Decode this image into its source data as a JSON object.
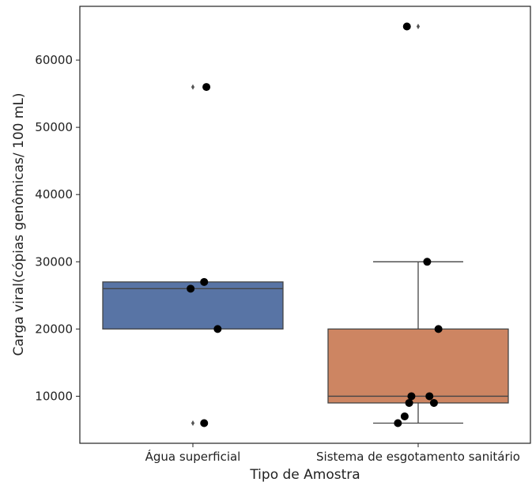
{
  "chart_data": {
    "type": "box",
    "xlabel": "Tipo de Amostra",
    "ylabel": "Carga viral(cópias genômicas/ 100 mL)",
    "ylim": [
      3000,
      68000
    ],
    "yticks": [
      10000,
      20000,
      30000,
      40000,
      50000,
      60000
    ],
    "ytick_labels": [
      "10000",
      "20000",
      "30000",
      "40000",
      "50000",
      "60000"
    ],
    "grid": false,
    "categories": [
      "Água superficial",
      "Sistema de esgotamento sanitário"
    ],
    "boxes": [
      {
        "category": "Água superficial",
        "color": "#5874a5",
        "q1": 20000,
        "median": 26000,
        "q3": 27000,
        "whisker_low": 20000,
        "whisker_high": 27000,
        "outliers": [
          6000,
          56000
        ]
      },
      {
        "category": "Sistema de esgotamento sanitário",
        "color": "#cd8562",
        "q1": 9000,
        "median": 10000,
        "q3": 20000,
        "whisker_low": 6000,
        "whisker_high": 30000,
        "outliers": [
          65000
        ]
      }
    ],
    "points": [
      {
        "category": 0,
        "jitter": 0.06,
        "y": 56000
      },
      {
        "category": 0,
        "jitter": 0.05,
        "y": 27000
      },
      {
        "category": 0,
        "jitter": -0.01,
        "y": 26000
      },
      {
        "category": 0,
        "jitter": 0.11,
        "y": 20000
      },
      {
        "category": 0,
        "jitter": 0.05,
        "y": 6000
      },
      {
        "category": 1,
        "jitter": -0.05,
        "y": 65000
      },
      {
        "category": 1,
        "jitter": 0.04,
        "y": 30000
      },
      {
        "category": 1,
        "jitter": 0.09,
        "y": 20000
      },
      {
        "category": 1,
        "jitter": -0.03,
        "y": 10000
      },
      {
        "category": 1,
        "jitter": 0.05,
        "y": 10000
      },
      {
        "category": 1,
        "jitter": -0.04,
        "y": 9000
      },
      {
        "category": 1,
        "jitter": 0.07,
        "y": 9000
      },
      {
        "category": 1,
        "jitter": -0.06,
        "y": 7000
      },
      {
        "category": 1,
        "jitter": -0.09,
        "y": 6000
      }
    ]
  }
}
